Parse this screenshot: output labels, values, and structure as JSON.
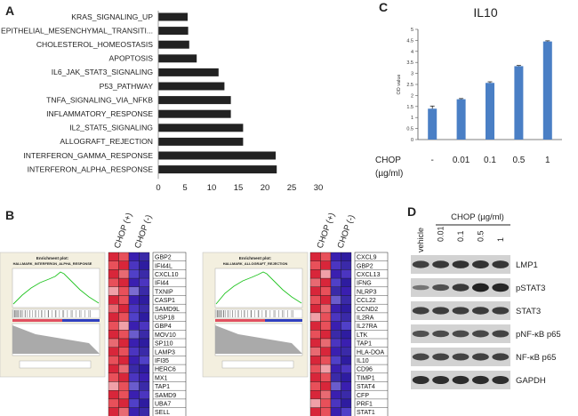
{
  "panel_labels": {
    "a": "A",
    "b": "B",
    "c": "C",
    "d": "D"
  },
  "chart_data": [
    {
      "type": "bar",
      "orientation": "horizontal",
      "categories": [
        "KRAS_SIGNALING_UP",
        "EPITHELIAL_MESENCHYMAL_TRANSITI...",
        "CHOLESTEROL_HOMEOSTASIS",
        "APOPTOSIS",
        "IL6_JAK_STAT3_SIGNALING",
        "P53_PATHWAY",
        "TNFA_SIGNALING_VIA_NFKB",
        "INFLAMMATORY_RESPONSE",
        "IL2_STAT5_SIGNALING",
        "ALLOGRAFT_REJECTION",
        "INTERFERON_GAMMA_RESPONSE",
        "INTERFERON_ALPHA_RESPONSE"
      ],
      "values": [
        5.5,
        5.6,
        5.8,
        7.2,
        11.3,
        12.4,
        13.6,
        13.6,
        15.9,
        15.9,
        22.0,
        22.2
      ],
      "xlabel": "-log10 (p-value)",
      "xlim": [
        0,
        30
      ],
      "xticks": [
        "0",
        "5",
        "10",
        "15",
        "20",
        "25",
        "30"
      ]
    },
    {
      "type": "bar",
      "title": "IL10",
      "ylabel": "OD value",
      "ylim": [
        0,
        5
      ],
      "yticks": [
        "0",
        "0.5",
        "1",
        "1.5",
        "2",
        "2.5",
        "3",
        "3.5",
        "4",
        "4.5",
        "5"
      ],
      "categories": [
        "-",
        "0.01",
        "0.1",
        "0.5",
        "1"
      ],
      "values": [
        1.4,
        1.83,
        2.57,
        3.33,
        4.45
      ],
      "errors": [
        0.12,
        0.03,
        0.05,
        0.03,
        0.03
      ],
      "xlabel_line1": "CHOP",
      "xlabel_line2": "(µg/ml)"
    }
  ],
  "panel_b": {
    "col_headers": [
      "CHOP (+)",
      "CHOP (-)"
    ],
    "plot_title": "Enrichment plot:",
    "left": {
      "subtitle": "HALLMARK_INTERFERON_ALPHA_RESPONSE",
      "genes": [
        "GBP2",
        "IFI44L",
        "CXCL10",
        "IFI44",
        "TXNIP",
        "CASP1",
        "SAMD9L",
        "USP18",
        "GBP4",
        "MOV10",
        "SP110",
        "LAMP3",
        "IFI35",
        "HERC6",
        "MX1",
        "TAP1",
        "SAMD9",
        "UBA7",
        "SELL",
        "STAT2"
      ],
      "heat_colors": [
        [
          "#d8263a",
          "#e8505a",
          "#3a1fb0",
          "#3a2aa8"
        ],
        [
          "#e8505a",
          "#d8263a",
          "#4b35c0",
          "#2e1ca0"
        ],
        [
          "#d8263a",
          "#e86a72",
          "#5040c8",
          "#3a2aa8"
        ],
        [
          "#e8505a",
          "#d8263a",
          "#3a1fb0",
          "#4b35c0"
        ],
        [
          "#f0a0a8",
          "#e8505a",
          "#7a6cd0",
          "#3a2aa8"
        ],
        [
          "#d8263a",
          "#e8505a",
          "#3a1fb0",
          "#2e1ca0"
        ],
        [
          "#e86a72",
          "#d8263a",
          "#4b35c0",
          "#3a2aa8"
        ],
        [
          "#d8263a",
          "#e8505a",
          "#5040c8",
          "#2e1ca0"
        ],
        [
          "#e8505a",
          "#f0a0a8",
          "#3a1fb0",
          "#4b35c0"
        ],
        [
          "#d8263a",
          "#e8505a",
          "#6a5ccc",
          "#3a2aa8"
        ],
        [
          "#e86a72",
          "#d8263a",
          "#3a1fb0",
          "#2e1ca0"
        ],
        [
          "#d8263a",
          "#e8505a",
          "#4b35c0",
          "#3a2aa8"
        ],
        [
          "#e8505a",
          "#d8263a",
          "#3a1fb0",
          "#5040c8"
        ],
        [
          "#d8263a",
          "#e86a72",
          "#3a2aa8",
          "#2e1ca0"
        ],
        [
          "#e8505a",
          "#d8263a",
          "#4b35c0",
          "#3a1fb0"
        ],
        [
          "#f0a0a8",
          "#e8505a",
          "#6a5ccc",
          "#3a2aa8"
        ],
        [
          "#d8263a",
          "#e8505a",
          "#3a1fb0",
          "#4b35c0"
        ],
        [
          "#e8505a",
          "#d8263a",
          "#5040c8",
          "#2e1ca0"
        ],
        [
          "#d8263a",
          "#e86a72",
          "#3a1fb0",
          "#3a2aa8"
        ],
        [
          "#e8505a",
          "#d8263a",
          "#4b35c0",
          "#2e1ca0"
        ]
      ]
    },
    "right": {
      "subtitle": "HALLMARK_ALLOGRAFT_REJECTION",
      "genes": [
        "CXCL9",
        "GBP2",
        "CXCL13",
        "IFNG",
        "NLRP3",
        "CCL22",
        "CCND2",
        "IL2RA",
        "IL27RA",
        "LTK",
        "TAP1",
        "HLA-DOA",
        "IL10",
        "CD96",
        "TIMP1",
        "STAT4",
        "CFP",
        "PRF1",
        "STAT1",
        "IL2RB",
        "TNF"
      ],
      "heat_colors": [
        [
          "#d8263a",
          "#e8505a",
          "#3a1fb0",
          "#2e1ca0"
        ],
        [
          "#e8505a",
          "#d8263a",
          "#4b35c0",
          "#3a2aa8"
        ],
        [
          "#d8263a",
          "#f0a0a8",
          "#3a1fb0",
          "#4b35c0"
        ],
        [
          "#e86a72",
          "#d8263a",
          "#5040c8",
          "#2e1ca0"
        ],
        [
          "#d8263a",
          "#e8505a",
          "#3a2aa8",
          "#3a1fb0"
        ],
        [
          "#e8505a",
          "#d8263a",
          "#6a5ccc",
          "#3a2aa8"
        ],
        [
          "#d8263a",
          "#e86a72",
          "#3a1fb0",
          "#2e1ca0"
        ],
        [
          "#f0a0a8",
          "#e8505a",
          "#4b35c0",
          "#3a2aa8"
        ],
        [
          "#d8263a",
          "#e8505a",
          "#3a1fb0",
          "#5040c8"
        ],
        [
          "#e8505a",
          "#d8263a",
          "#3a2aa8",
          "#2e1ca0"
        ],
        [
          "#d8263a",
          "#e86a72",
          "#4b35c0",
          "#3a1fb0"
        ],
        [
          "#e86a72",
          "#d8263a",
          "#3a1fb0",
          "#3a2aa8"
        ],
        [
          "#d8263a",
          "#e8505a",
          "#5040c8",
          "#2e1ca0"
        ],
        [
          "#e8505a",
          "#f0a0a8",
          "#3a1fb0",
          "#4b35c0"
        ],
        [
          "#d8263a",
          "#e8505a",
          "#3a2aa8",
          "#2e1ca0"
        ],
        [
          "#e8505a",
          "#d8263a",
          "#6a5ccc",
          "#3a1fb0"
        ],
        [
          "#d8263a",
          "#e86a72",
          "#3a1fb0",
          "#3a2aa8"
        ],
        [
          "#f0a0a8",
          "#e8505a",
          "#4b35c0",
          "#2e1ca0"
        ],
        [
          "#d8263a",
          "#e8505a",
          "#3a1fb0",
          "#5040c8"
        ],
        [
          "#e8505a",
          "#d8263a",
          "#3a2aa8",
          "#2e1ca0"
        ],
        [
          "#d8263a",
          "#e86a72",
          "#4b35c0",
          "#3a1fb0"
        ]
      ]
    },
    "colors": {
      "gsea_curve": "#22c422",
      "panel_bg": "#f3efdf",
      "heat_border": "#1a1a1a"
    }
  },
  "panel_d": {
    "header": "CHOP (µg/ml)",
    "lanes": [
      "vehicle",
      "0.01",
      "0.1",
      "0.5",
      "1"
    ],
    "proteins": [
      "LMP1",
      "pSTAT3",
      "STAT3",
      "pNF-κB p65",
      "NF-κB p65",
      "GAPDH"
    ],
    "band_intensity": [
      [
        0.7,
        0.75,
        0.8,
        0.82,
        0.78
      ],
      [
        0.25,
        0.55,
        0.75,
        0.95,
        0.9
      ],
      [
        0.7,
        0.72,
        0.72,
        0.74,
        0.72
      ],
      [
        0.55,
        0.6,
        0.62,
        0.65,
        0.66
      ],
      [
        0.65,
        0.66,
        0.68,
        0.7,
        0.7
      ],
      [
        0.85,
        0.85,
        0.86,
        0.86,
        0.85
      ]
    ]
  },
  "colors": {
    "bar_dark": "#222222",
    "bar_blue": "#4a7fc5",
    "blot_bg": "#d2d2d2",
    "band": "#1c1c1c"
  }
}
